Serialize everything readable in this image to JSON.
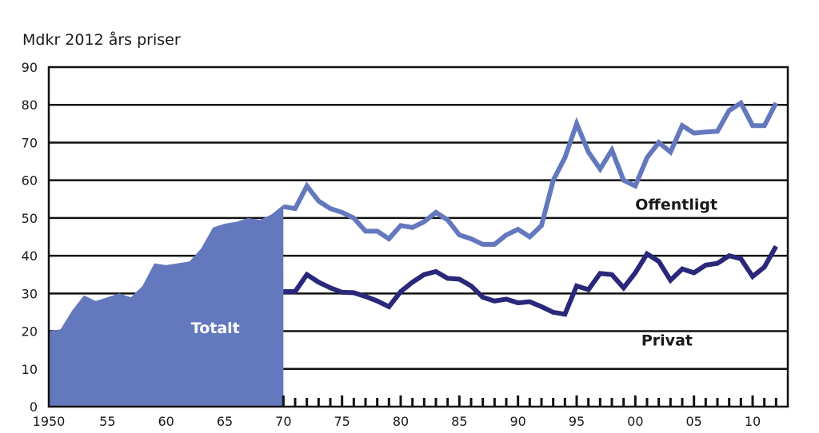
{
  "chart_data": {
    "type": "area",
    "ylabel": "Mdkr 2012 års priser",
    "ylim": [
      0,
      90
    ],
    "xlim": [
      1950,
      2013
    ],
    "y_ticks": [
      "0",
      "10",
      "20",
      "30",
      "40",
      "50",
      "60",
      "70",
      "80",
      "90"
    ],
    "x_ticks": [
      {
        "x": 1950,
        "label": "1950"
      },
      {
        "x": 1955,
        "label": "55"
      },
      {
        "x": 1960,
        "label": "60"
      },
      {
        "x": 1965,
        "label": "65"
      },
      {
        "x": 1970,
        "label": "70"
      },
      {
        "x": 1975,
        "label": "75"
      },
      {
        "x": 1980,
        "label": "80"
      },
      {
        "x": 1985,
        "label": "85"
      },
      {
        "x": 1990,
        "label": "90"
      },
      {
        "x": 1995,
        "label": "95"
      },
      {
        "x": 2000,
        "label": "00"
      },
      {
        "x": 2005,
        "label": "05"
      },
      {
        "x": 2010,
        "label": "10"
      }
    ],
    "grid": true,
    "series": [
      {
        "name": "Totalt",
        "kind": "area",
        "color": "#6478be",
        "x": [
          1950,
          1951,
          1952,
          1953,
          1954,
          1955,
          1956,
          1957,
          1958,
          1959,
          1960,
          1961,
          1962,
          1963,
          1964,
          1965,
          1966,
          1967,
          1968,
          1969,
          1970
        ],
        "values": [
          20,
          20.5,
          25.5,
          29.5,
          28,
          29,
          30,
          29,
          32,
          38,
          37.5,
          38,
          38.5,
          42,
          47.5,
          48.5,
          49,
          50,
          49.5,
          51,
          53.5
        ]
      },
      {
        "name": "Offentligt",
        "kind": "line",
        "color": "#6478be",
        "x": [
          1970,
          1971,
          1972,
          1973,
          1974,
          1975,
          1976,
          1977,
          1978,
          1979,
          1980,
          1981,
          1982,
          1983,
          1984,
          1985,
          1986,
          1987,
          1988,
          1989,
          1990,
          1991,
          1992,
          1993,
          1994,
          1995,
          1996,
          1997,
          1998,
          1999,
          2000,
          2001,
          2002,
          2003,
          2004,
          2005,
          2006,
          2007,
          2008,
          2009,
          2010,
          2011,
          2012
        ],
        "values": [
          53,
          52.5,
          58.5,
          54.5,
          52.5,
          51.5,
          50,
          46.5,
          46.5,
          44.5,
          48,
          47.5,
          49,
          51.5,
          49.5,
          45.5,
          44.5,
          43,
          43,
          45.5,
          47,
          45,
          48,
          60,
          66,
          75,
          67.5,
          63,
          68,
          60,
          58.5,
          66,
          70,
          67.5,
          74.5,
          72.5,
          72.8,
          73,
          78.5,
          80.5,
          74.5,
          74.5,
          80.5
        ]
      },
      {
        "name": "Privat",
        "kind": "line",
        "color": "#29287a",
        "x": [
          1970,
          1971,
          1972,
          1973,
          1974,
          1975,
          1976,
          1977,
          1978,
          1979,
          1980,
          1981,
          1982,
          1983,
          1984,
          1985,
          1986,
          1987,
          1988,
          1989,
          1990,
          1991,
          1992,
          1993,
          1994,
          1995,
          1996,
          1997,
          1998,
          1999,
          2000,
          2001,
          2002,
          2003,
          2004,
          2005,
          2006,
          2007,
          2008,
          2009,
          2010,
          2011,
          2012
        ],
        "values": [
          30.5,
          30.5,
          35,
          33,
          31.5,
          30.3,
          30.2,
          29.2,
          28,
          26.5,
          30.5,
          33,
          35,
          35.8,
          34,
          33.8,
          32,
          29,
          28,
          28.5,
          27.5,
          27.8,
          26.5,
          25,
          24.5,
          32,
          31,
          35.3,
          35,
          31.5,
          35.5,
          40.5,
          38.5,
          33.5,
          36.5,
          35.5,
          37.5,
          38,
          40,
          39.2,
          34.5,
          37,
          42.5
        ]
      }
    ],
    "annotations": [
      {
        "text": "Totalt",
        "x": 1964.2,
        "y": 19.5,
        "color": "#ffffff"
      },
      {
        "text": "Offentligt",
        "x": 2003.5,
        "y": 52.2,
        "color": "#1a1a1a"
      },
      {
        "text": "Privat",
        "x": 2002.7,
        "y": 16.2,
        "color": "#1a1a1a"
      }
    ]
  }
}
